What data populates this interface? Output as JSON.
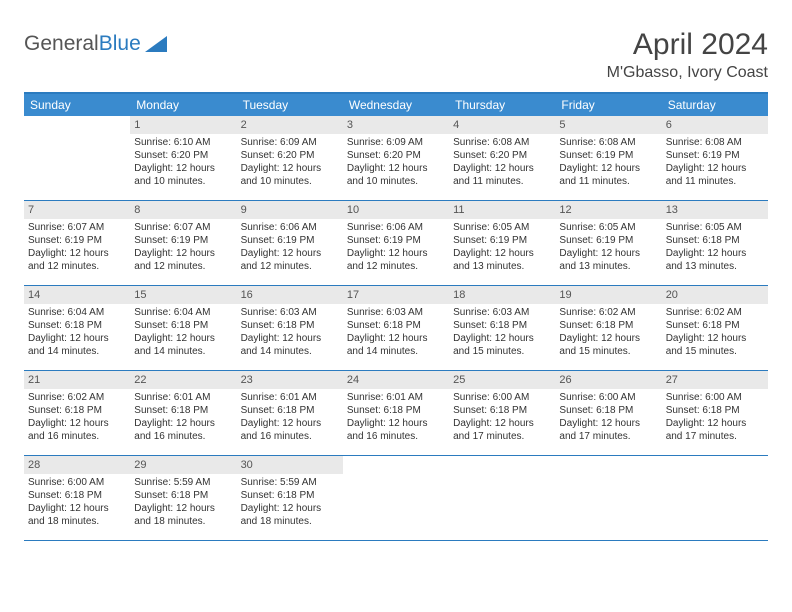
{
  "logo": {
    "text_general": "General",
    "text_blue": "Blue"
  },
  "title": "April 2024",
  "location": "M'Gbasso, Ivory Coast",
  "colors": {
    "header_bg": "#3a8bcf",
    "border": "#2b7bbf",
    "daynum_bg": "#e9e9e9"
  },
  "day_names": [
    "Sunday",
    "Monday",
    "Tuesday",
    "Wednesday",
    "Thursday",
    "Friday",
    "Saturday"
  ],
  "weeks": [
    [
      {
        "empty": true
      },
      {
        "n": "1",
        "sr": "6:10 AM",
        "ss": "6:20 PM",
        "dl": "12 hours and 10 minutes."
      },
      {
        "n": "2",
        "sr": "6:09 AM",
        "ss": "6:20 PM",
        "dl": "12 hours and 10 minutes."
      },
      {
        "n": "3",
        "sr": "6:09 AM",
        "ss": "6:20 PM",
        "dl": "12 hours and 10 minutes."
      },
      {
        "n": "4",
        "sr": "6:08 AM",
        "ss": "6:20 PM",
        "dl": "12 hours and 11 minutes."
      },
      {
        "n": "5",
        "sr": "6:08 AM",
        "ss": "6:19 PM",
        "dl": "12 hours and 11 minutes."
      },
      {
        "n": "6",
        "sr": "6:08 AM",
        "ss": "6:19 PM",
        "dl": "12 hours and 11 minutes."
      }
    ],
    [
      {
        "n": "7",
        "sr": "6:07 AM",
        "ss": "6:19 PM",
        "dl": "12 hours and 12 minutes."
      },
      {
        "n": "8",
        "sr": "6:07 AM",
        "ss": "6:19 PM",
        "dl": "12 hours and 12 minutes."
      },
      {
        "n": "9",
        "sr": "6:06 AM",
        "ss": "6:19 PM",
        "dl": "12 hours and 12 minutes."
      },
      {
        "n": "10",
        "sr": "6:06 AM",
        "ss": "6:19 PM",
        "dl": "12 hours and 12 minutes."
      },
      {
        "n": "11",
        "sr": "6:05 AM",
        "ss": "6:19 PM",
        "dl": "12 hours and 13 minutes."
      },
      {
        "n": "12",
        "sr": "6:05 AM",
        "ss": "6:19 PM",
        "dl": "12 hours and 13 minutes."
      },
      {
        "n": "13",
        "sr": "6:05 AM",
        "ss": "6:18 PM",
        "dl": "12 hours and 13 minutes."
      }
    ],
    [
      {
        "n": "14",
        "sr": "6:04 AM",
        "ss": "6:18 PM",
        "dl": "12 hours and 14 minutes."
      },
      {
        "n": "15",
        "sr": "6:04 AM",
        "ss": "6:18 PM",
        "dl": "12 hours and 14 minutes."
      },
      {
        "n": "16",
        "sr": "6:03 AM",
        "ss": "6:18 PM",
        "dl": "12 hours and 14 minutes."
      },
      {
        "n": "17",
        "sr": "6:03 AM",
        "ss": "6:18 PM",
        "dl": "12 hours and 14 minutes."
      },
      {
        "n": "18",
        "sr": "6:03 AM",
        "ss": "6:18 PM",
        "dl": "12 hours and 15 minutes."
      },
      {
        "n": "19",
        "sr": "6:02 AM",
        "ss": "6:18 PM",
        "dl": "12 hours and 15 minutes."
      },
      {
        "n": "20",
        "sr": "6:02 AM",
        "ss": "6:18 PM",
        "dl": "12 hours and 15 minutes."
      }
    ],
    [
      {
        "n": "21",
        "sr": "6:02 AM",
        "ss": "6:18 PM",
        "dl": "12 hours and 16 minutes."
      },
      {
        "n": "22",
        "sr": "6:01 AM",
        "ss": "6:18 PM",
        "dl": "12 hours and 16 minutes."
      },
      {
        "n": "23",
        "sr": "6:01 AM",
        "ss": "6:18 PM",
        "dl": "12 hours and 16 minutes."
      },
      {
        "n": "24",
        "sr": "6:01 AM",
        "ss": "6:18 PM",
        "dl": "12 hours and 16 minutes."
      },
      {
        "n": "25",
        "sr": "6:00 AM",
        "ss": "6:18 PM",
        "dl": "12 hours and 17 minutes."
      },
      {
        "n": "26",
        "sr": "6:00 AM",
        "ss": "6:18 PM",
        "dl": "12 hours and 17 minutes."
      },
      {
        "n": "27",
        "sr": "6:00 AM",
        "ss": "6:18 PM",
        "dl": "12 hours and 17 minutes."
      }
    ],
    [
      {
        "n": "28",
        "sr": "6:00 AM",
        "ss": "6:18 PM",
        "dl": "12 hours and 18 minutes."
      },
      {
        "n": "29",
        "sr": "5:59 AM",
        "ss": "6:18 PM",
        "dl": "12 hours and 18 minutes."
      },
      {
        "n": "30",
        "sr": "5:59 AM",
        "ss": "6:18 PM",
        "dl": "12 hours and 18 minutes."
      },
      {
        "empty": true
      },
      {
        "empty": true
      },
      {
        "empty": true
      },
      {
        "empty": true
      }
    ]
  ],
  "label_sunrise": "Sunrise: ",
  "label_sunset": "Sunset: ",
  "label_daylight": "Daylight: "
}
